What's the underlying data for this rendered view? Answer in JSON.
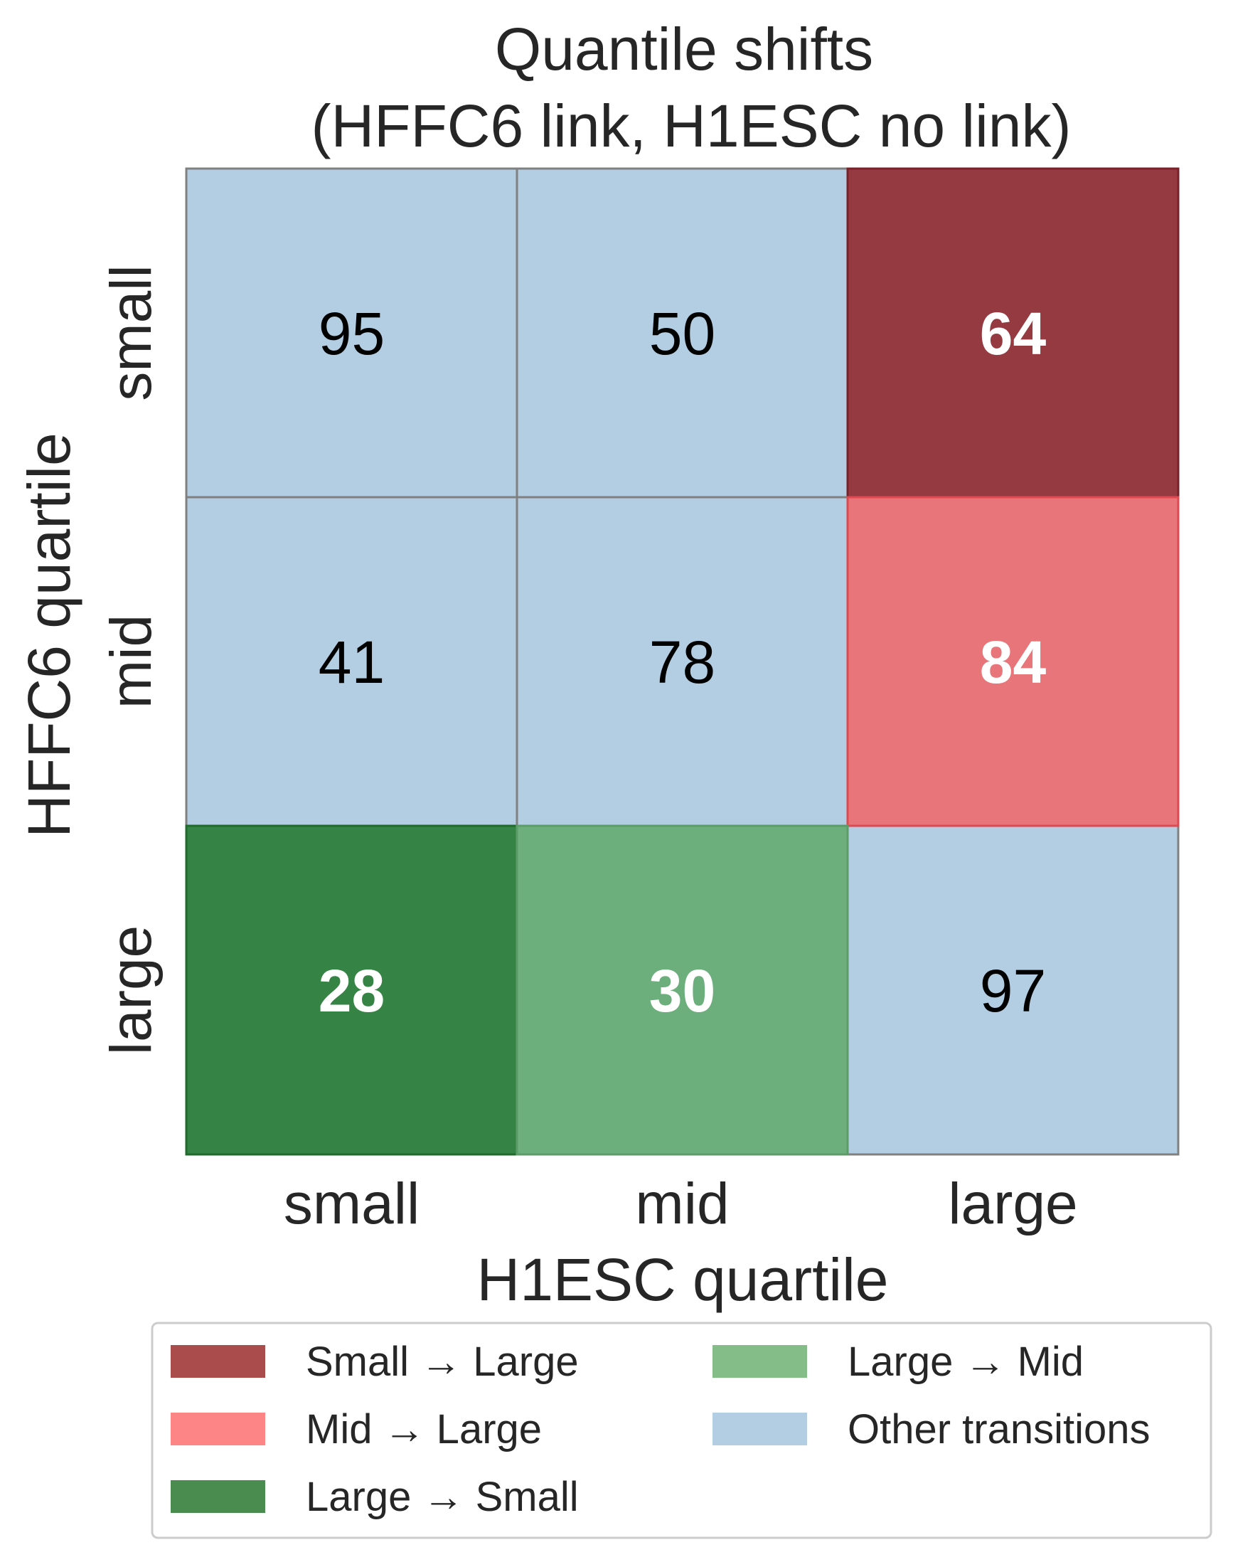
{
  "chart_data": {
    "type": "heatmap",
    "title_lines": [
      "Quantile shifts",
      "(HFFC6 link, H1ESC no link)"
    ],
    "xlabel": "H1ESC quartile",
    "ylabel": "HFFC6 quartile",
    "x_categories": [
      "small",
      "mid",
      "large"
    ],
    "y_categories": [
      "small",
      "mid",
      "large"
    ],
    "values": [
      [
        95,
        50,
        64
      ],
      [
        41,
        78,
        84
      ],
      [
        28,
        30,
        97
      ]
    ],
    "cell_categories": [
      [
        "other",
        "other",
        "small_to_large"
      ],
      [
        "other",
        "other",
        "mid_to_large"
      ],
      [
        "large_to_small",
        "large_to_mid",
        "other"
      ]
    ],
    "categories": {
      "small_to_large": {
        "label": "Small → Large",
        "color": "#963a42",
        "border": "#7a2028",
        "text_color": "#ffffff",
        "bold": true
      },
      "mid_to_large": {
        "label": "Mid → Large",
        "color": "#e8757a",
        "border": "#e0474f",
        "text_color": "#ffffff",
        "bold": true
      },
      "large_to_small": {
        "label": "Large → Small",
        "color": "#358345",
        "border": "#1f6b2b",
        "text_color": "#ffffff",
        "bold": true
      },
      "large_to_mid": {
        "label": "Large → Mid",
        "color": "#6dae7d",
        "border": "#5c9c69",
        "text_color": "#ffffff",
        "bold": true
      },
      "other": {
        "label": "Other transitions",
        "color": "#b3cde2",
        "border": "#808080",
        "text_color": "#000000",
        "bold": false
      }
    },
    "legend": {
      "placement": "bottom",
      "columns": [
        [
          "small_to_large",
          "mid_to_large",
          "large_to_small"
        ],
        [
          "large_to_mid",
          "other"
        ]
      ],
      "swatch_colors": {
        "small_to_large": "#ab4c4c",
        "mid_to_large": "#fe8585",
        "large_to_small": "#4a8b4f",
        "large_to_mid": "#85bd88",
        "other": "#b3cde2"
      }
    },
    "grid": true
  }
}
